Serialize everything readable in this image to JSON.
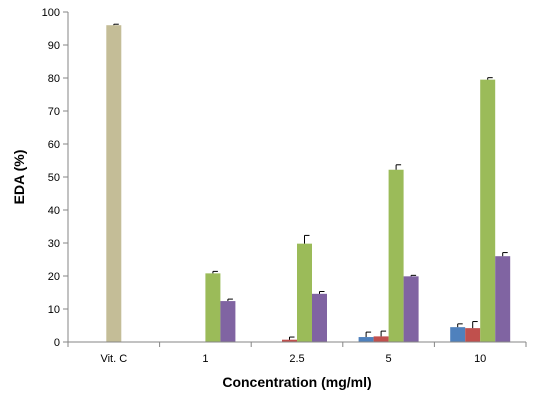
{
  "chart_data": {
    "type": "bar",
    "categories": [
      "Vit. C",
      "1",
      "2.5",
      "5",
      "10"
    ],
    "xlabel": "Concentration (mg/ml)",
    "ylabel": "EDA (%)",
    "ylim": [
      0,
      100
    ],
    "yticks": [
      0,
      10,
      20,
      30,
      40,
      50,
      60,
      70,
      80,
      90,
      100
    ],
    "grid": false,
    "legend": "none",
    "series": [
      {
        "color": "#4f81bd",
        "values": [
          null,
          0,
          0,
          1.5,
          4.5
        ],
        "errors": [
          null,
          0,
          0,
          1.5,
          1
        ]
      },
      {
        "color": "#c0504d",
        "values": [
          null,
          0,
          0.7,
          1.7,
          4.2
        ],
        "errors": [
          null,
          0,
          0.8,
          1.6,
          2
        ]
      },
      {
        "color": "#9bbb59",
        "values": [
          null,
          20.8,
          29.8,
          52.2,
          79.5
        ],
        "errors": [
          null,
          0.6,
          2.5,
          1.5,
          0.6
        ]
      },
      {
        "color": "#8064a2",
        "values": [
          null,
          12.4,
          14.6,
          19.9,
          26
        ],
        "errors": [
          null,
          0.6,
          0.7,
          0.3,
          1.1
        ]
      },
      {
        "color": "#c4bd97",
        "values": [
          96,
          null,
          null,
          null,
          null
        ],
        "errors": [
          0.3,
          null,
          null,
          null,
          null
        ]
      }
    ]
  }
}
